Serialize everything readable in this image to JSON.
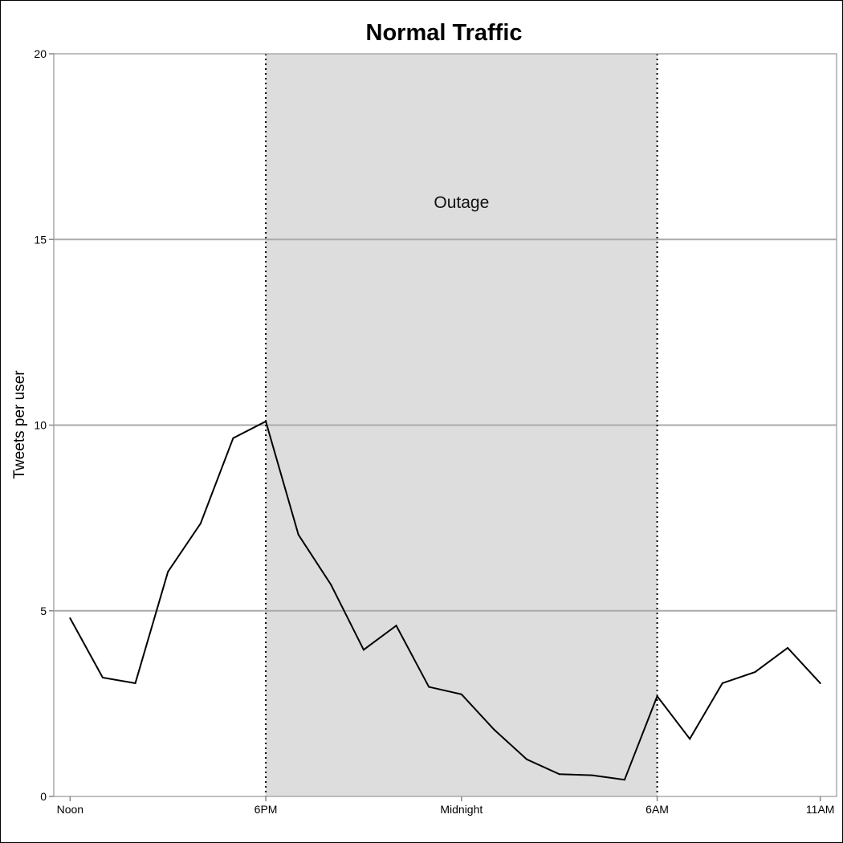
{
  "chart_data": {
    "type": "line",
    "title": "Normal Traffic",
    "xlabel": "",
    "ylabel": "Tweets per user",
    "ylim": [
      0,
      20
    ],
    "xlim": [
      -0.5,
      23.5
    ],
    "yticks": [
      0,
      5,
      10,
      15,
      20
    ],
    "xticks": [
      {
        "x": 0,
        "label": "Noon"
      },
      {
        "x": 6,
        "label": "6PM"
      },
      {
        "x": 12,
        "label": "Midnight"
      },
      {
        "x": 18,
        "label": "6AM"
      },
      {
        "x": 23,
        "label": "11AM"
      }
    ],
    "grid": "horizontal",
    "x": [
      0,
      1,
      2,
      3,
      4,
      5,
      6,
      7,
      8,
      9,
      10,
      11,
      12,
      13,
      14,
      15,
      16,
      17,
      18,
      19,
      20,
      21,
      22,
      23
    ],
    "series": [
      {
        "values": [
          4.8,
          3.2,
          3.05,
          6.05,
          7.35,
          9.65,
          10.1,
          7.05,
          5.7,
          3.95,
          4.6,
          2.95,
          2.75,
          1.8,
          1.0,
          0.6,
          0.57,
          0.45,
          2.7,
          1.55,
          3.05,
          3.35,
          4.0,
          3.05
        ],
        "color": "#000000"
      }
    ],
    "shaded_region": {
      "x_start": 6,
      "x_end": 18,
      "label": "Outage",
      "label_y": 16,
      "color": "#dddddd"
    }
  }
}
